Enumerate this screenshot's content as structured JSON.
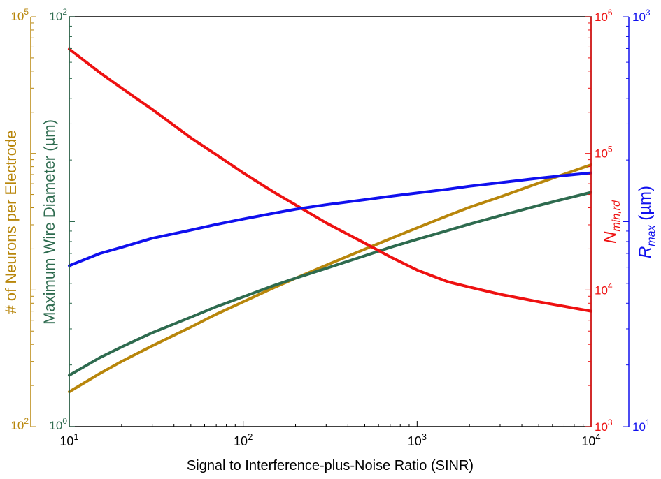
{
  "chart_data": {
    "type": "line",
    "x_axis": {
      "label": "Signal to Interference-plus-Noise Ratio (SINR)",
      "scale": "log",
      "range": [
        10,
        10000
      ],
      "ticks": [
        {
          "base": "10",
          "exp": "1"
        },
        {
          "base": "10",
          "exp": "2"
        },
        {
          "base": "10",
          "exp": "3"
        },
        {
          "base": "10",
          "exp": "4"
        }
      ]
    },
    "y_axes": [
      {
        "id": "neurons",
        "label": "# of Neurons per Electrode",
        "scale": "log",
        "range": [
          100,
          100000
        ],
        "color": "#b8860b",
        "ticks": [
          {
            "base": "10",
            "exp": "2"
          },
          {
            "base": "10",
            "exp": "5"
          }
        ]
      },
      {
        "id": "wire",
        "label": "Maximum Wire Diameter (µm)",
        "scale": "log",
        "range": [
          1,
          100
        ],
        "color": "#2e6b4f",
        "ticks": [
          {
            "base": "10",
            "exp": "0"
          },
          {
            "base": "10",
            "exp": "2"
          }
        ]
      },
      {
        "id": "nmin",
        "label_main": "N",
        "label_sub": "min,rd",
        "scale": "log",
        "range": [
          1000,
          1000000
        ],
        "color": "#ee1111",
        "ticks": [
          {
            "base": "10",
            "exp": "3"
          },
          {
            "base": "10",
            "exp": "4"
          },
          {
            "base": "10",
            "exp": "5"
          },
          {
            "base": "10",
            "exp": "6"
          }
        ]
      },
      {
        "id": "rmax",
        "label_main": "R",
        "label_sub": "max",
        "label_unit": " (µm)",
        "scale": "log",
        "range": [
          10,
          1000
        ],
        "color": "#1010ee",
        "ticks": [
          {
            "base": "10",
            "exp": "1"
          },
          {
            "base": "10",
            "exp": "3"
          }
        ]
      }
    ],
    "series": [
      {
        "axis": "neurons",
        "color": "#b8860b",
        "x": [
          10,
          15,
          20,
          30,
          50,
          70,
          100,
          150,
          200,
          300,
          500,
          700,
          1000,
          1500,
          2000,
          3000,
          5000,
          7000,
          10000
        ],
        "y": [
          180,
          245,
          300,
          390,
          535,
          665,
          820,
          1040,
          1220,
          1520,
          1990,
          2370,
          2850,
          3500,
          4030,
          4800,
          6060,
          7040,
          8250
        ]
      },
      {
        "axis": "wire",
        "color": "#2e6b4f",
        "x": [
          10,
          15,
          20,
          30,
          50,
          70,
          100,
          150,
          200,
          300,
          500,
          700,
          1000,
          1500,
          2000,
          3000,
          5000,
          7000,
          10000
        ],
        "y": [
          1.78,
          2.17,
          2.45,
          2.87,
          3.42,
          3.85,
          4.3,
          4.88,
          5.3,
          5.92,
          6.82,
          7.49,
          8.2,
          9.06,
          9.74,
          10.7,
          12.0,
          12.9,
          13.9
        ]
      },
      {
        "axis": "nmin",
        "color": "#ee1111",
        "x": [
          10,
          15,
          20,
          30,
          50,
          70,
          100,
          150,
          200,
          300,
          500,
          700,
          1000,
          1500,
          2000,
          3000,
          5000,
          7000,
          10000
        ],
        "y": [
          580000,
          390000,
          300000,
          210000,
          130000,
          98000,
          72000,
          52000,
          42000,
          31000,
          22000,
          17500,
          14000,
          11500,
          10500,
          9300,
          8200,
          7600,
          7000
        ]
      },
      {
        "axis": "rmax",
        "color": "#1010ee",
        "x": [
          10,
          15,
          20,
          30,
          50,
          70,
          100,
          150,
          200,
          300,
          500,
          700,
          1000,
          1500,
          2000,
          3000,
          5000,
          7000,
          10000
        ],
        "y": [
          61,
          70,
          75,
          83,
          91,
          97,
          103,
          110,
          115,
          121,
          128,
          133,
          138,
          144,
          149,
          155,
          163,
          168,
          173
        ]
      }
    ],
    "grid": false,
    "legend": "none"
  }
}
